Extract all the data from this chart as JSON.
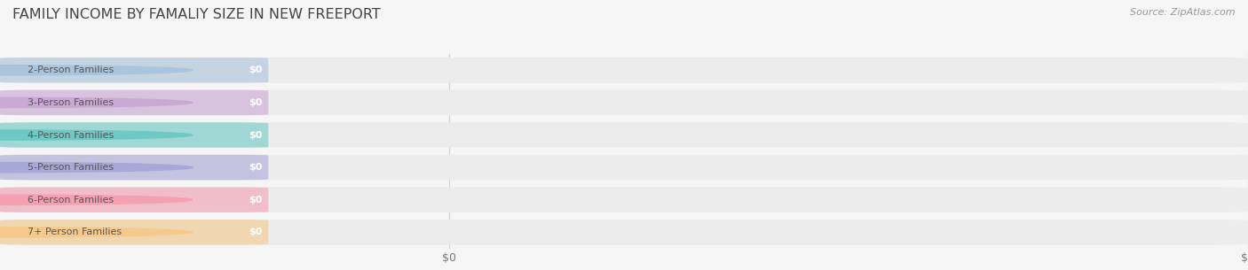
{
  "title": "FAMILY INCOME BY FAMALIY SIZE IN NEW FREEPORT",
  "source": "Source: ZipAtlas.com",
  "categories": [
    "2-Person Families",
    "3-Person Families",
    "4-Person Families",
    "5-Person Families",
    "6-Person Families",
    "7+ Person Families"
  ],
  "values": [
    0,
    0,
    0,
    0,
    0,
    0
  ],
  "bar_colors": [
    "#aac4de",
    "#c9a8d4",
    "#6ec9c4",
    "#a8a8d8",
    "#f4a0b0",
    "#f5c98a"
  ],
  "bg_color": "#f5f5f5",
  "bar_bg_color": "#ececec",
  "label_color": "#555555",
  "value_label_color": "#ffffff",
  "title_color": "#444444",
  "source_color": "#999999",
  "title_fontsize": 11.5,
  "source_fontsize": 8,
  "bar_label_fontsize": 8,
  "tick_fontsize": 9
}
